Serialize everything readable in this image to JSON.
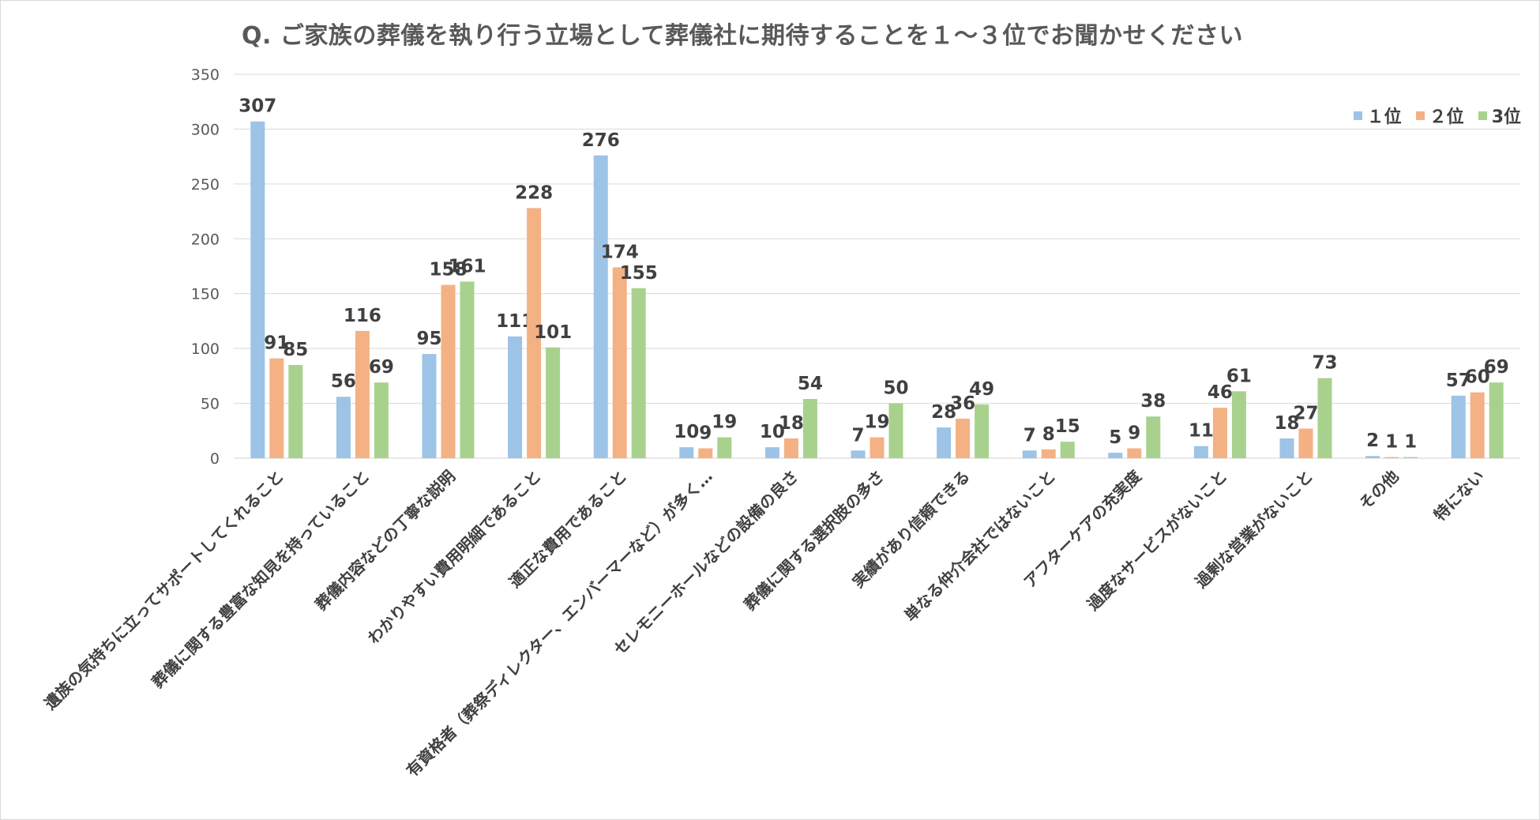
{
  "chart_data": {
    "type": "bar",
    "title": "Q. ご家族の葬儀を執り行う立場として葬儀社に期待することを１～３位でお聞かせください",
    "xlabel": "",
    "ylabel": "",
    "ylim": [
      0,
      350
    ],
    "yticks": [
      0,
      50,
      100,
      150,
      200,
      250,
      300,
      350
    ],
    "legend_position": "top-right",
    "categories": [
      "遺族の気持ちに立ってサポートしてくれること",
      "葬儀に関する豊富な知見を持っていること",
      "葬儀内容などの丁寧な説明",
      "わかりやすい費用明細であること",
      "適正な費用であること",
      "有資格者（葬祭ディレクター、エンバーマーなど）が多く…",
      "セレモニーホールなどの設備の良さ",
      "葬儀に関する選択肢の多さ",
      "実績があり信頼できる",
      "単なる仲介会社ではないこと",
      "アフターケアの充実度",
      "過度なサービスがないこと",
      "過剰な営業がないこと",
      "その他",
      "特にない"
    ],
    "series": [
      {
        "name": "１位",
        "color": "#9dc3e6",
        "values": [
          307,
          56,
          95,
          111,
          276,
          10,
          10,
          7,
          28,
          7,
          5,
          11,
          18,
          2,
          57
        ]
      },
      {
        "name": "２位",
        "color": "#f4b183",
        "values": [
          91,
          116,
          158,
          228,
          174,
          9,
          18,
          19,
          36,
          8,
          9,
          46,
          27,
          1,
          60
        ]
      },
      {
        "name": "3位",
        "color": "#a9d18e",
        "values": [
          85,
          69,
          161,
          101,
          155,
          19,
          54,
          50,
          49,
          15,
          38,
          61,
          73,
          1,
          69
        ]
      }
    ]
  }
}
